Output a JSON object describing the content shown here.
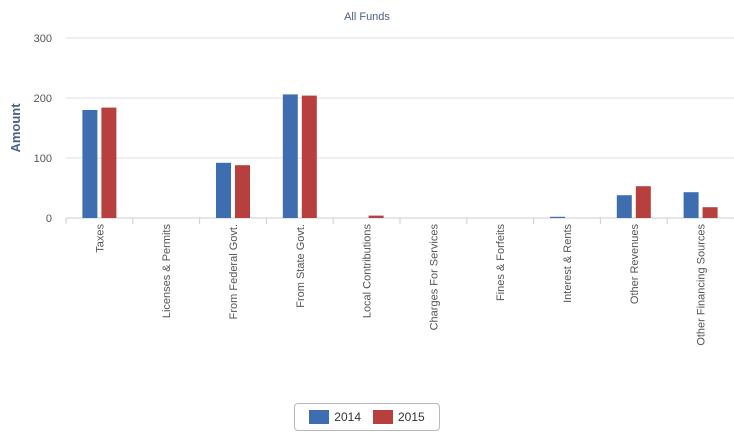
{
  "chart_data": {
    "type": "bar",
    "title": "All Funds",
    "ylabel": "Amount",
    "xlabel": "",
    "ylim": [
      0,
      300
    ],
    "yticks": [
      0,
      100,
      200,
      300
    ],
    "grid": true,
    "legend_position": "bottom-center",
    "categories": [
      "Taxes",
      "Licenses & Permits",
      "From Federal Govt.",
      "From State Govt.",
      "Local Contributions",
      "Charges For Services",
      "Fines & Forfeits",
      "Interest & Rents",
      "Other Revenues",
      "Other Financing Sources"
    ],
    "series": [
      {
        "name": "2014",
        "color": "#3f6eb0",
        "values": [
          180,
          0,
          92,
          206,
          0,
          0,
          0,
          2,
          38,
          43
        ]
      },
      {
        "name": "2015",
        "color": "#b7403f",
        "values": [
          184,
          0,
          88,
          204,
          4,
          0,
          0,
          0,
          53,
          18
        ]
      }
    ]
  }
}
